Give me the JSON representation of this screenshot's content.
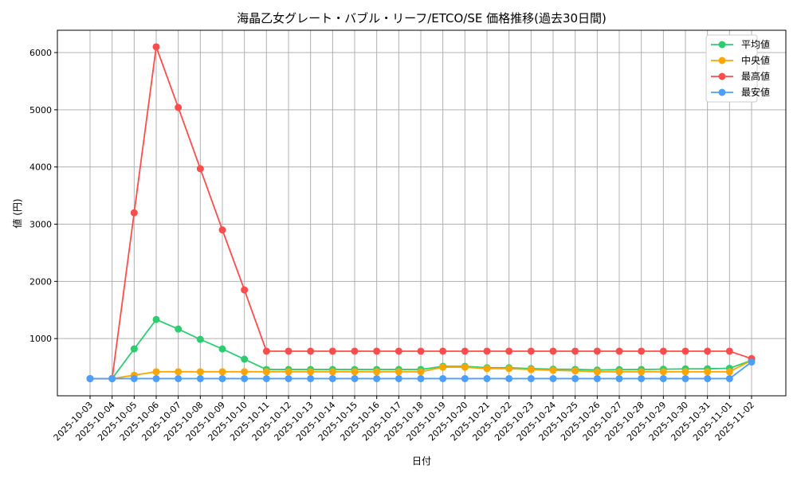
{
  "chart_data": {
    "type": "line",
    "title": "海晶乙女グレート・バブル・リーフ/ETCO/SE 価格推移(過去30日間)",
    "xlabel": "日付",
    "ylabel": "値 (円)",
    "ylim": [
      0,
      6390
    ],
    "yticks": [
      1000,
      2000,
      3000,
      4000,
      5000,
      6000
    ],
    "grid": true,
    "legend_position": "top-right",
    "x": [
      "2025-10-03",
      "2025-10-04",
      "2025-10-05",
      "2025-10-06",
      "2025-10-07",
      "2025-10-08",
      "2025-10-09",
      "2025-10-10",
      "2025-10-11",
      "2025-10-12",
      "2025-10-13",
      "2025-10-14",
      "2025-10-15",
      "2025-10-16",
      "2025-10-17",
      "2025-10-18",
      "2025-10-19",
      "2025-10-20",
      "2025-10-21",
      "2025-10-22",
      "2025-10-23",
      "2025-10-24",
      "2025-10-25",
      "2025-10-26",
      "2025-10-27",
      "2025-10-28",
      "2025-10-29",
      "2025-10-30",
      "2025-10-31",
      "2025-11-01",
      "2025-11-02"
    ],
    "series": [
      {
        "name": "平均値",
        "color": "#2ecc71",
        "values": [
          300,
          300,
          820,
          1333,
          1167,
          986,
          819,
          640,
          460,
          460,
          460,
          460,
          460,
          460,
          460,
          460,
          515,
          515,
          490,
          490,
          475,
          465,
          462,
          450,
          458,
          460,
          465,
          470,
          472,
          480,
          620
        ]
      },
      {
        "name": "中央値",
        "color": "#ffa500",
        "values": [
          300,
          300,
          360,
          420,
          420,
          420,
          420,
          420,
          420,
          420,
          420,
          420,
          420,
          420,
          420,
          420,
          500,
          500,
          475,
          475,
          458,
          445,
          435,
          420,
          420,
          420,
          420,
          420,
          420,
          420,
          620
        ]
      },
      {
        "name": "最高値",
        "color": "#ff4d4d",
        "values": [
          300,
          300,
          3200,
          6100,
          5040,
          3970,
          2900,
          1850,
          780,
          780,
          780,
          780,
          780,
          780,
          780,
          780,
          780,
          780,
          780,
          780,
          780,
          780,
          780,
          780,
          780,
          780,
          780,
          780,
          780,
          780,
          650
        ]
      },
      {
        "name": "最安値",
        "color": "#4d9fff",
        "values": [
          300,
          300,
          300,
          300,
          300,
          300,
          300,
          300,
          300,
          300,
          300,
          300,
          300,
          300,
          300,
          300,
          300,
          300,
          300,
          300,
          300,
          300,
          300,
          300,
          300,
          300,
          300,
          300,
          300,
          300,
          590
        ]
      }
    ]
  }
}
